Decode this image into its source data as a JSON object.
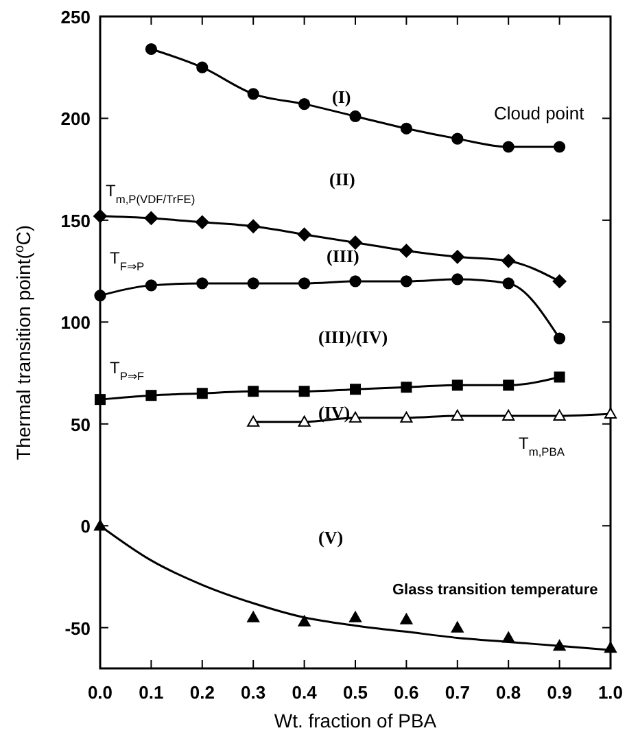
{
  "chart_data": {
    "type": "line",
    "xlabel": "Wt. fraction of PBA",
    "ylabel": "Thermal transition point($^{o}$C)",
    "xlim": [
      0,
      1
    ],
    "xticks": [
      {
        "value": 0,
        "label": "0.0"
      },
      {
        "value": 0.1,
        "label": "0.1"
      },
      {
        "value": 0.2,
        "label": "0.2"
      },
      {
        "value": 0.3,
        "label": "0.3"
      },
      {
        "value": 0.4,
        "label": "0.4"
      },
      {
        "value": 0.5,
        "label": "0.5"
      },
      {
        "value": 0.6,
        "label": "0.6"
      },
      {
        "value": 0.7,
        "label": "0.7"
      },
      {
        "value": 0.8,
        "label": "0.8"
      },
      {
        "value": 0.9,
        "label": "0.9"
      },
      {
        "value": 1,
        "label": "1.0"
      }
    ],
    "ylim": [
      -70,
      250
    ],
    "yticks": [
      -50,
      0,
      50,
      100,
      150,
      200,
      250
    ],
    "grid": false,
    "annotations": [
      "(I)",
      "(II)",
      "(III)",
      "(III)/(IV)",
      "(IV)",
      "(V)"
    ],
    "series": [
      {
        "name": "Cloud point",
        "color": "#000000",
        "marker": "circle",
        "x": [
          0.1,
          0.2,
          0.3,
          0.4,
          0.5,
          0.6,
          0.7,
          0.8,
          0.9
        ],
        "values": [
          234,
          225,
          212,
          207,
          201,
          195,
          190,
          186,
          186
        ]
      },
      {
        "name": "T$_{m,P(VDF/TrFE)}$",
        "color": "#000000",
        "marker": "diamond",
        "x": [
          0,
          0.1,
          0.2,
          0.3,
          0.4,
          0.5,
          0.6,
          0.7,
          0.8,
          0.9
        ],
        "values": [
          152,
          151,
          149,
          147,
          143,
          139,
          135,
          132,
          130,
          120
        ]
      },
      {
        "name": "T$_{F⇒P}$",
        "color": "#000000",
        "marker": "circle",
        "x": [
          0,
          0.1,
          0.2,
          0.3,
          0.4,
          0.5,
          0.6,
          0.7,
          0.8,
          0.9
        ],
        "values": [
          113,
          118,
          119,
          119,
          119,
          120,
          120,
          121,
          119,
          92
        ]
      },
      {
        "name": "T$_{P⇒F}$",
        "color": "#000000",
        "marker": "square",
        "x": [
          0,
          0.1,
          0.2,
          0.3,
          0.4,
          0.5,
          0.6,
          0.7,
          0.8,
          0.9
        ],
        "values": [
          62,
          64,
          65,
          66,
          66,
          67,
          68,
          69,
          69,
          73
        ]
      },
      {
        "name": "T$_{m,PBA}$",
        "color": "#000000",
        "marker": "triangle",
        "x": [
          0.3,
          0.4,
          0.5,
          0.6,
          0.7,
          0.8,
          0.9,
          1.0
        ],
        "values": [
          51,
          51,
          53,
          53,
          54,
          54,
          54,
          55
        ]
      },
      {
        "name": "Glass transition temperature",
        "type": "scatter",
        "color": "#000000",
        "marker": "triangle",
        "x": [
          0,
          0.3,
          0.4,
          0.5,
          0.6,
          0.7,
          0.8,
          0.9,
          1.0
        ],
        "values": [
          0,
          -45,
          -47,
          -45,
          -46,
          -50,
          -55,
          -59,
          -60
        ]
      },
      {
        "type": "line",
        "color": "#000000",
        "marker": "none",
        "x": [
          0,
          0.1,
          0.2,
          0.3,
          0.4,
          0.5,
          0.6,
          0.7,
          0.8,
          0.9,
          1.0
        ],
        "values": [
          0,
          -17,
          -29,
          -38,
          -45,
          -49,
          -52,
          -55,
          -57,
          -59,
          -61
        ]
      }
    ]
  }
}
